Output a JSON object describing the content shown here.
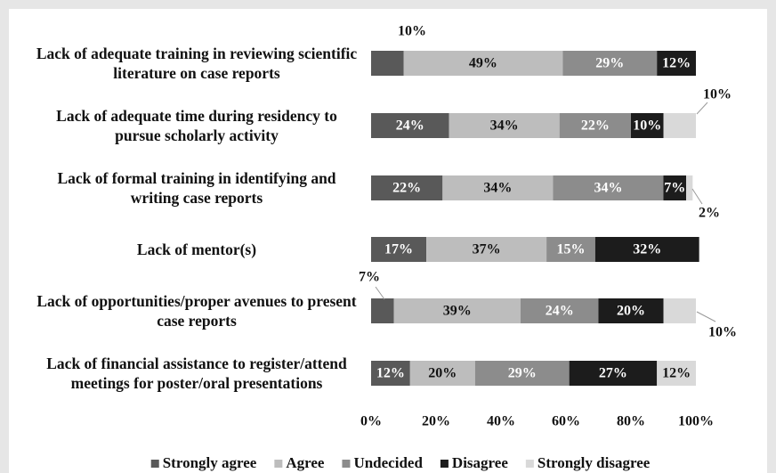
{
  "chart_data": {
    "type": "stacked-bar-horizontal",
    "categories": [
      "Lack of adequate training in reviewing scientific literature on case reports",
      "Lack of adequate time during residency to pursue scholarly activity",
      "Lack of formal training in identifying and writing case reports",
      "Lack of mentor(s)",
      "Lack of opportunities/proper avenues to present case reports",
      "Lack of financial assistance to register/attend meetings for poster/oral presentations"
    ],
    "series": [
      {
        "name": "Strongly agree",
        "color": "#595959",
        "values": [
          10,
          24,
          22,
          17,
          7,
          12
        ],
        "value_labels": [
          "10%",
          "24%",
          "22%",
          "17%",
          "7%",
          "12%"
        ]
      },
      {
        "name": "Agree",
        "color": "#bdbdbd",
        "values": [
          49,
          34,
          34,
          37,
          39,
          20
        ],
        "value_labels": [
          "49%",
          "34%",
          "34%",
          "37%",
          "39%",
          "20%"
        ]
      },
      {
        "name": "Undecided",
        "color": "#8c8c8c",
        "values": [
          29,
          22,
          34,
          15,
          24,
          29
        ],
        "value_labels": [
          "29%",
          "22%",
          "34%",
          "15%",
          "24%",
          "29%"
        ]
      },
      {
        "name": "Disagree",
        "color": "#1c1c1c",
        "values": [
          12,
          10,
          7,
          32,
          20,
          27
        ],
        "value_labels": [
          "12%",
          "10%",
          "7%",
          "32%",
          "20%",
          "27%"
        ]
      },
      {
        "name": "Strongly disagree",
        "color": "#d9d9d9",
        "values": [
          null,
          10,
          2,
          null,
          10,
          12
        ],
        "value_labels": [
          null,
          "10%",
          "2%",
          null,
          "10%",
          "12%"
        ]
      }
    ],
    "xlim": [
      0,
      100
    ],
    "xticks": [
      {
        "value": 0,
        "label": "0%"
      },
      {
        "value": 20,
        "label": "20%"
      },
      {
        "value": 40,
        "label": "40%"
      },
      {
        "value": 60,
        "label": "60%"
      },
      {
        "value": 80,
        "label": "80%"
      },
      {
        "value": 100,
        "label": "100%"
      }
    ],
    "legend": "bottom"
  }
}
